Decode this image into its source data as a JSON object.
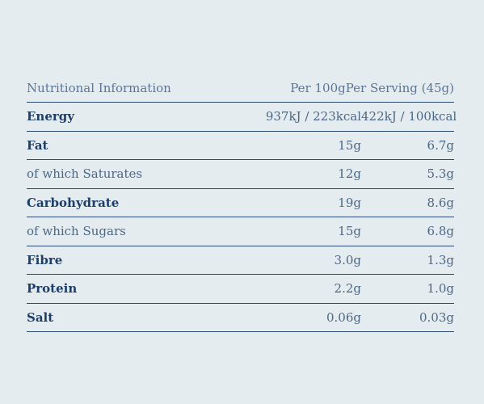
{
  "table": {
    "header": {
      "label": "Nutritional Information",
      "per_100g": "Per 100g",
      "per_serving": "Per Serving (45g)"
    },
    "rows": [
      {
        "label": "Energy",
        "per_100g": "937kJ / 223kcal",
        "per_serving": "422kJ / 100kcal",
        "emphasis": true
      },
      {
        "label": "Fat",
        "per_100g": "15g",
        "per_serving": "6.7g",
        "emphasis": true
      },
      {
        "label": "of which Saturates",
        "per_100g": "12g",
        "per_serving": "5.3g",
        "emphasis": false
      },
      {
        "label": "Carbohydrate",
        "per_100g": "19g",
        "per_serving": "8.6g",
        "emphasis": true
      },
      {
        "label": "of which Sugars",
        "per_100g": "15g",
        "per_serving": "6.8g",
        "emphasis": false
      },
      {
        "label": "Fibre",
        "per_100g": "3.0g",
        "per_serving": "1.3g",
        "emphasis": true
      },
      {
        "label": "Protein",
        "per_100g": "2.2g",
        "per_serving": "1.0g",
        "emphasis": true
      },
      {
        "label": "Salt",
        "per_100g": "0.06g",
        "per_serving": "0.03g",
        "emphasis": true
      }
    ]
  }
}
